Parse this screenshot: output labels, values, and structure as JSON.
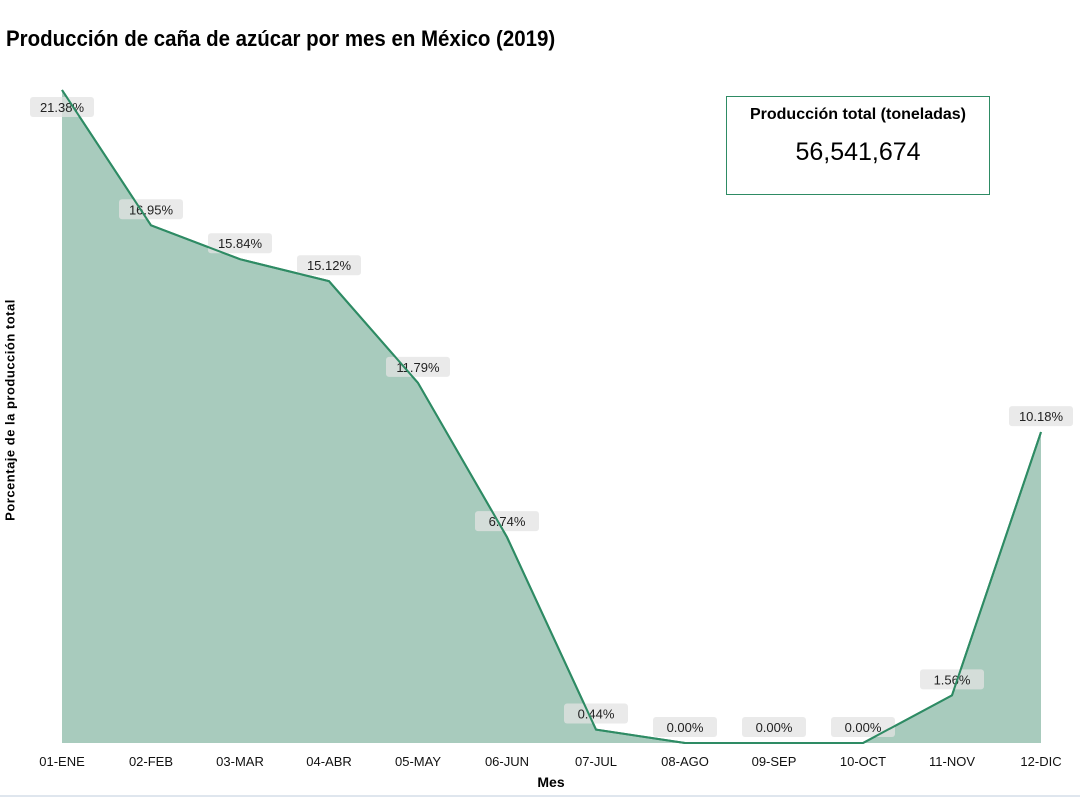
{
  "chart_data": {
    "type": "area",
    "title": "Producción de caña de azúcar por mes en México (2019)",
    "xlabel": "Mes",
    "ylabel": "Porcentaje de la producción total",
    "categories": [
      "01-ENE",
      "02-FEB",
      "03-MAR",
      "04-ABR",
      "05-MAY",
      "06-JUN",
      "07-JUL",
      "08-AGO",
      "09-SEP",
      "10-OCT",
      "11-NOV",
      "12-DIC"
    ],
    "values": [
      21.38,
      16.95,
      15.84,
      15.12,
      11.79,
      6.74,
      0.44,
      0.0,
      0.0,
      0.0,
      1.56,
      10.18
    ],
    "data_labels": [
      "21.38%",
      "16.95%",
      "15.84%",
      "15.12%",
      "11.79%",
      "6.74%",
      "0.44%",
      "0.00%",
      "0.00%",
      "0.00%",
      "1.56%",
      "10.18%"
    ],
    "ylim": [
      0,
      21.38
    ],
    "grid": false,
    "colors": {
      "fill": "#a8cbbd",
      "line": "#2e8b64",
      "label_bg": "#e3e3e3"
    }
  },
  "summary_box": {
    "title": "Producción total (toneladas)",
    "value": "56,541,674"
  }
}
